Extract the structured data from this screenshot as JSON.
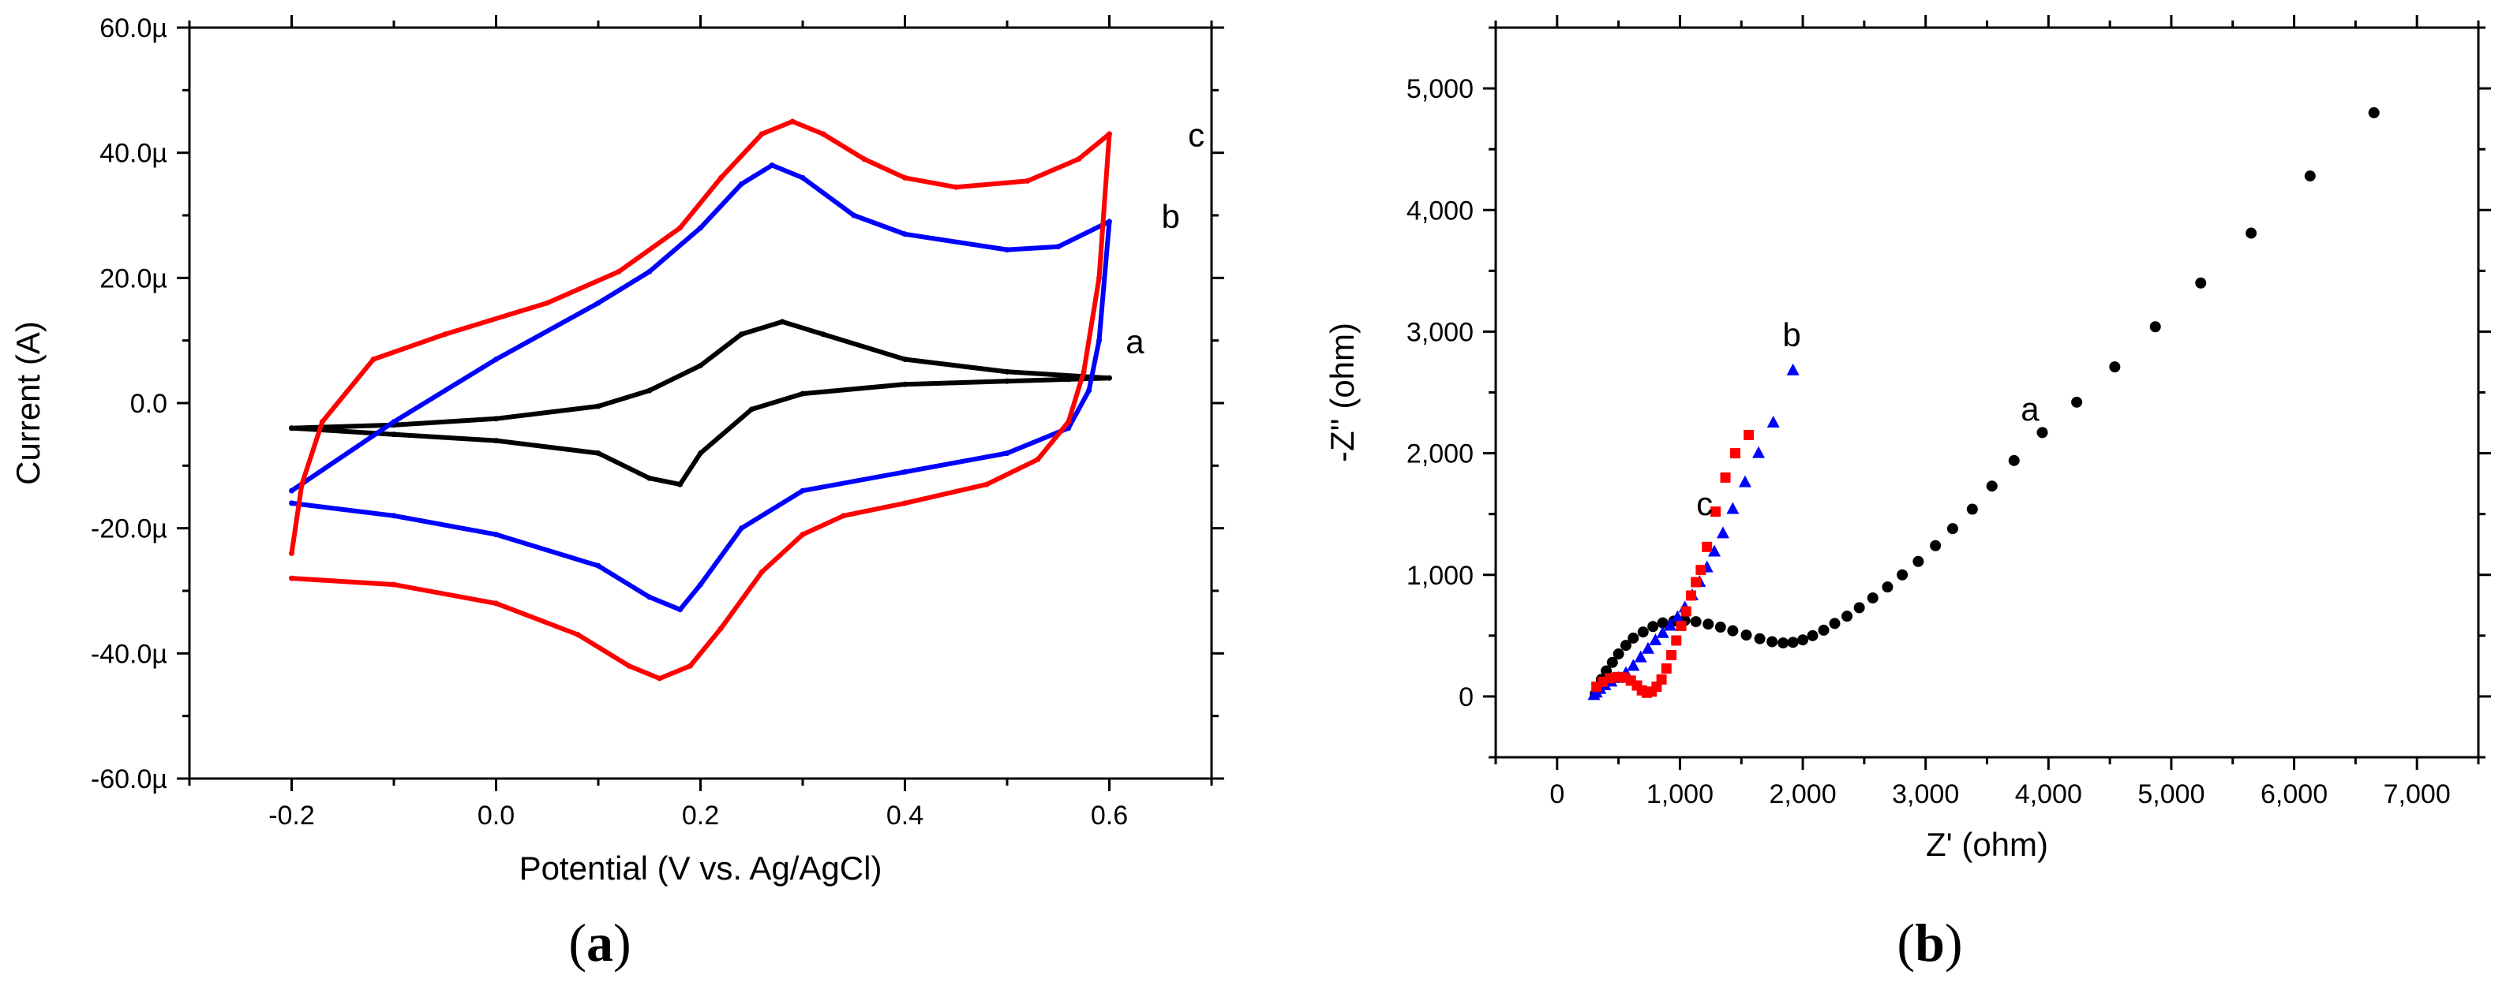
{
  "chart_data": [
    {
      "type": "line",
      "xlabel": "Potential (V vs. Ag/AgCl)",
      "ylabel": "Current (A)",
      "xlim": [
        -0.3,
        0.7
      ],
      "ylim": [
        -60,
        60
      ],
      "xticks": [
        -0.2,
        0.0,
        0.2,
        0.4,
        0.6
      ],
      "xtick_labels": [
        "-0.2",
        "0.0",
        "0.2",
        "0.4",
        "0.6"
      ],
      "yticks": [
        -60,
        -40,
        -20,
        0,
        20,
        40,
        60
      ],
      "ytick_labels": [
        "-60.0µ",
        "-40.0µ",
        "-20.0µ",
        "0.0",
        "20.0µ",
        "40.0µ",
        "60.0µ"
      ],
      "panel_label": "a",
      "series": [
        {
          "label": "a",
          "color": "#000000",
          "label_pos": [
            0.625,
            8
          ],
          "x": [
            -0.2,
            -0.1,
            0.0,
            0.1,
            0.15,
            0.2,
            0.24,
            0.28,
            0.32,
            0.4,
            0.5,
            0.6,
            0.56,
            0.5,
            0.4,
            0.3,
            0.25,
            0.2,
            0.18,
            0.15,
            0.1,
            0.0,
            -0.1,
            -0.2
          ],
          "y": [
            -4,
            -3.5,
            -2.5,
            -0.5,
            2,
            6,
            11,
            13,
            11,
            7,
            5,
            4,
            3.8,
            3.5,
            3,
            1.5,
            -1,
            -8,
            -13,
            -12,
            -8,
            -6,
            -5,
            -4
          ]
        },
        {
          "label": "b",
          "color": "#0000ff",
          "label_pos": [
            0.66,
            28
          ],
          "x": [
            -0.2,
            -0.1,
            0.0,
            0.1,
            0.15,
            0.2,
            0.24,
            0.27,
            0.3,
            0.35,
            0.4,
            0.5,
            0.55,
            0.6,
            0.59,
            0.58,
            0.56,
            0.5,
            0.4,
            0.3,
            0.24,
            0.2,
            0.18,
            0.15,
            0.1,
            0.0,
            -0.1,
            -0.2
          ],
          "y": [
            -14,
            -3,
            7,
            16,
            21,
            28,
            35,
            38,
            36,
            30,
            27,
            24.5,
            25,
            29,
            10,
            2,
            -4,
            -8,
            -11,
            -14,
            -20,
            -29,
            -33,
            -31,
            -26,
            -21,
            -18,
            -16
          ]
        },
        {
          "label": "c",
          "color": "#ff0000",
          "label_pos": [
            0.685,
            41
          ],
          "x": [
            -0.2,
            -0.19,
            -0.17,
            -0.12,
            -0.05,
            0.05,
            0.12,
            0.18,
            0.22,
            0.26,
            0.29,
            0.32,
            0.36,
            0.4,
            0.45,
            0.52,
            0.57,
            0.6,
            0.59,
            0.575,
            0.56,
            0.53,
            0.48,
            0.4,
            0.34,
            0.3,
            0.26,
            0.22,
            0.19,
            0.16,
            0.13,
            0.08,
            0.0,
            -0.1,
            -0.2
          ],
          "y": [
            -24,
            -13,
            -3,
            7,
            11,
            16,
            21,
            28,
            36,
            43,
            45,
            43,
            39,
            36,
            34.5,
            35.5,
            39,
            43,
            20,
            5,
            -3,
            -9,
            -13,
            -16,
            -18,
            -21,
            -27,
            -36,
            -42,
            -44,
            -42,
            -37,
            -32,
            -29,
            -28
          ]
        }
      ]
    },
    {
      "type": "scatter",
      "xlabel": "Z' (ohm)",
      "ylabel": "-Z'' (ohm)",
      "xlim": [
        -500,
        7500
      ],
      "ylim": [
        -500,
        5500
      ],
      "xticks": [
        0,
        1000,
        2000,
        3000,
        4000,
        5000,
        6000,
        7000
      ],
      "xtick_labels": [
        "0",
        "1,000",
        "2,000",
        "3,000",
        "4,000",
        "5,000",
        "6,000",
        "7,000"
      ],
      "yticks": [
        0,
        1000,
        2000,
        3000,
        4000,
        5000
      ],
      "ytick_labels": [
        "0",
        "1,000",
        "2,000",
        "3,000",
        "4,000",
        "5,000"
      ],
      "panel_label": "b",
      "series": [
        {
          "label": "a",
          "color": "#000000",
          "marker": "circle",
          "label_pos": [
            3850,
            2270
          ],
          "x": [
            310,
            330,
            360,
            400,
            450,
            500,
            560,
            620,
            700,
            780,
            860,
            950,
            1040,
            1130,
            1230,
            1330,
            1430,
            1540,
            1650,
            1750,
            1840,
            1920,
            2000,
            2080,
            2170,
            2260,
            2360,
            2460,
            2570,
            2690,
            2810,
            2940,
            3080,
            3220,
            3380,
            3540,
            3720,
            3950,
            4230,
            4540,
            4870,
            5240,
            5650,
            6130,
            6650
          ],
          "y": [
            20,
            80,
            140,
            210,
            280,
            350,
            420,
            480,
            530,
            575,
            605,
            620,
            625,
            615,
            595,
            570,
            540,
            505,
            475,
            450,
            440,
            445,
            465,
            500,
            545,
            600,
            660,
            730,
            810,
            900,
            1000,
            1110,
            1240,
            1380,
            1540,
            1730,
            1940,
            2170,
            2420,
            2710,
            3040,
            3400,
            3810,
            4280,
            4800
          ]
        },
        {
          "label": "b",
          "color": "#0000ff",
          "marker": "triangle",
          "label_pos": [
            1910,
            2880
          ],
          "x": [
            300,
            320,
            350,
            390,
            440,
            500,
            560,
            620,
            680,
            740,
            800,
            860,
            920,
            980,
            1040,
            1100,
            1160,
            1220,
            1280,
            1350,
            1430,
            1530,
            1640,
            1760,
            1920
          ],
          "y": [
            10,
            30,
            60,
            90,
            120,
            150,
            190,
            250,
            320,
            390,
            460,
            520,
            580,
            650,
            730,
            830,
            940,
            1060,
            1190,
            1340,
            1540,
            1760,
            2000,
            2250,
            2680
          ]
        },
        {
          "label": "c",
          "color": "#ff0000",
          "marker": "square",
          "label_pos": [
            1200,
            1490
          ],
          "x": [
            320,
            370,
            430,
            490,
            550,
            600,
            650,
            690,
            730,
            770,
            810,
            850,
            890,
            930,
            970,
            1010,
            1050,
            1090,
            1130,
            1170,
            1220,
            1290,
            1370,
            1450,
            1560
          ],
          "y": [
            80,
            120,
            150,
            160,
            155,
            130,
            90,
            50,
            30,
            40,
            80,
            140,
            230,
            340,
            460,
            580,
            700,
            830,
            940,
            1040,
            1230,
            1520,
            1800,
            2000,
            2150
          ]
        }
      ]
    }
  ]
}
